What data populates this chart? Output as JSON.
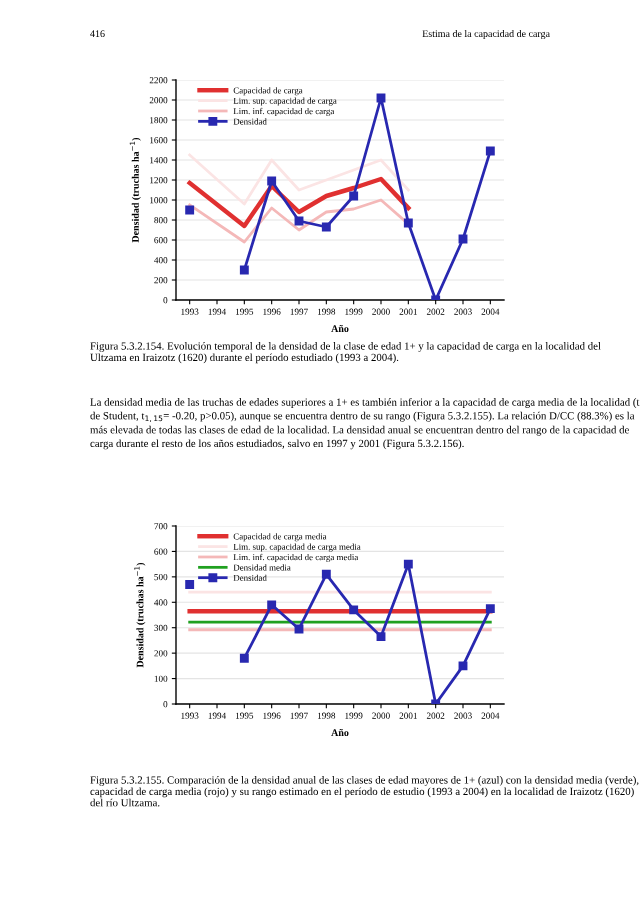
{
  "chart_data": [
    {
      "type": "line",
      "xlabel": "Año",
      "ylabel": "Densidad (truchas ha$^{−1}$)",
      "annotations": [
        "416",
        "Estima de la capacidad de carga",
        "Figura 5.3.2.154. Evolución temporal de la densidad de la clase de edad 1+ y la capacidad de carga en la localidad del Ultzama en Iraizotz (1620) durante el período estudiado (1993 a 2004).",
        "La densidad media de las truchas de edades superiores a 1+ es también inferior a la capacidad de carga media de la localidad (t de Student, t$_{1,15}$= -0.20, p>0.05), aunque se encuentra dentro de su rango (Figura 5.3.2.155). La relación D/CC (88.3%) es la más elevada de todas las clases de edad de la localidad. La densidad anual se encuentran dentro del rango de la capacidad de carga durante el resto de los años estudiados, salvo en 1997 y 2001 (Figura 5.3.2.156)."
      ],
      "x": [
        1993,
        1994,
        1995,
        1996,
        1997,
        1998,
        1999,
        2000,
        2001,
        2002,
        2003,
        2004
      ],
      "xlim": [
        1992.5,
        2004.5
      ],
      "xticks": [
        1993,
        1994,
        1995,
        1996,
        1997,
        1998,
        1999,
        2000,
        2001,
        2002,
        2003,
        2004
      ],
      "ylim": [
        0,
        2200
      ],
      "yticks": [
        0,
        200,
        400,
        600,
        800,
        1000,
        1200,
        1400,
        1600,
        1800,
        2000,
        2200
      ],
      "grid": "y",
      "legend": "top left",
      "series": [
        {
          "name": "Capacidad de carga",
          "color": "#e03030",
          "x": [
            1993,
            1995,
            1996,
            1997,
            1998,
            1999,
            2000,
            2001
          ],
          "values": [
            1170,
            740,
            1140,
            880,
            1040,
            1120,
            1210,
            920
          ],
          "marker": "none"
        },
        {
          "name": "Lim. sup. capacidad de carga",
          "color": "#fbe4e4",
          "x": [
            1993,
            1995,
            1996,
            1997,
            1998,
            1999,
            2000,
            2001
          ],
          "values": [
            1450,
            960,
            1400,
            1100,
            1200,
            1300,
            1400,
            1100
          ],
          "marker": "none"
        },
        {
          "name": "Lim. inf. capacidad de carga",
          "color": "#f4b8b8",
          "x": [
            1993,
            1995,
            1996,
            1997,
            1998,
            1999,
            2000,
            2001
          ],
          "values": [
            950,
            580,
            920,
            700,
            880,
            910,
            1000,
            760
          ],
          "marker": "none"
        },
        {
          "name": "Densidad",
          "color": "#2828b0",
          "values": [
            900,
            null,
            300,
            1190,
            790,
            730,
            1040,
            2020,
            770,
            0,
            610,
            1490
          ],
          "marker": "square"
        }
      ]
    },
    {
      "type": "line",
      "xlabel": "Año",
      "ylabel": "Densidad (truchas ha$^{−1}$)",
      "annotations": [
        "Figura 5.3.2.155. Comparación de la densidad anual de las clases de edad mayores de 1+ (azul) con la densidad media (verde), capacidad de carga media (rojo) y su rango estimado en el período de estudio (1993 a 2004) en la localidad de Iraizotz (1620) del río Ultzama."
      ],
      "x": [
        1993,
        1994,
        1995,
        1996,
        1997,
        1998,
        1999,
        2000,
        2001,
        2002,
        2003,
        2004
      ],
      "xlim": [
        1992.5,
        2004.5
      ],
      "xticks": [
        1993,
        1994,
        1995,
        1996,
        1997,
        1998,
        1999,
        2000,
        2001,
        2002,
        2003,
        2004
      ],
      "ylim": [
        0,
        700
      ],
      "yticks": [
        0,
        100,
        200,
        300,
        400,
        500,
        600,
        700
      ],
      "grid": "y",
      "legend": "top left",
      "series": [
        {
          "name": "Capacidad de carga media",
          "color": "#e03030",
          "x": [
            1993,
            2004
          ],
          "values": [
            365,
            365
          ],
          "marker": "none"
        },
        {
          "name": "Lim. sup. capacidad de carga media",
          "color": "#fbe4e4",
          "x": [
            1993,
            2004
          ],
          "values": [
            440,
            440
          ],
          "marker": "none"
        },
        {
          "name": "Lim. inf. capacidad de carga media",
          "color": "#f4b8b8",
          "x": [
            1993,
            2004
          ],
          "values": [
            292,
            292
          ],
          "marker": "none"
        },
        {
          "name": "Densidad media",
          "color": "#20a020",
          "x": [
            1993,
            2004
          ],
          "values": [
            322,
            322
          ],
          "marker": "none"
        },
        {
          "name": "Densidad",
          "color": "#2828b0",
          "values": [
            470,
            null,
            180,
            390,
            295,
            510,
            370,
            265,
            550,
            0,
            150,
            375
          ],
          "marker": "square"
        }
      ]
    }
  ]
}
